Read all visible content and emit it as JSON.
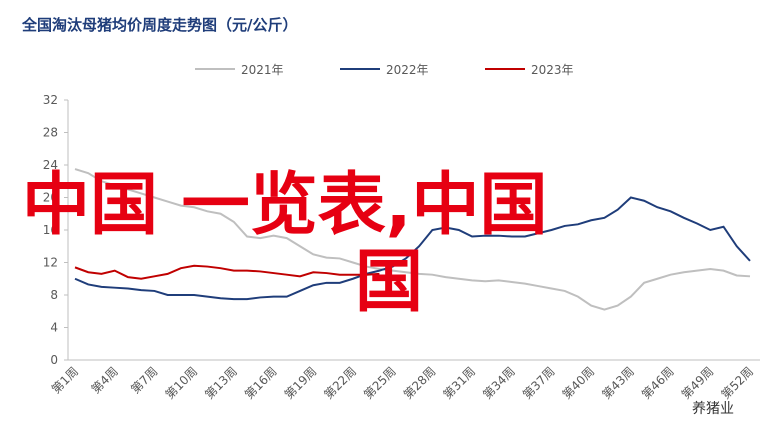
{
  "chart_data": {
    "type": "line",
    "title": "全国淘汰母猪均价周度走势图（元/公斤）",
    "categories": [
      "第1周",
      null,
      null,
      "第4周",
      null,
      null,
      "第7周",
      null,
      null,
      "第10周",
      null,
      null,
      "第13周",
      null,
      null,
      "第16周",
      null,
      null,
      "第19周",
      null,
      null,
      "第22周",
      null,
      null,
      "第25周",
      null,
      null,
      "第28周",
      null,
      null,
      "第31周",
      null,
      null,
      "第34周",
      null,
      null,
      "第37周",
      null,
      null,
      "第40周",
      null,
      null,
      "第43周",
      null,
      null,
      "第46周",
      null,
      null,
      "第49周",
      null,
      null,
      "第52周"
    ],
    "series": [
      {
        "name": "2021年",
        "color": "#bfbfbf",
        "values": [
          23.5,
          23,
          22,
          21.5,
          21,
          20.5,
          20,
          19.5,
          19,
          18.8,
          18.3,
          18,
          17,
          15.2,
          15,
          15.3,
          15,
          14,
          13,
          12.6,
          12.5,
          12,
          11.5,
          11.2,
          11,
          10.8,
          10.6,
          10.5,
          10.2,
          10,
          9.8,
          9.7,
          9.8,
          9.6,
          9.4,
          9.1,
          8.8,
          8.5,
          7.8,
          6.7,
          6.2,
          6.7,
          7.8,
          9.5,
          10,
          10.5,
          10.8,
          11,
          11.2,
          11,
          10.4,
          10.3
        ]
      },
      {
        "name": "2022年",
        "color": "#1f3d7a",
        "values": [
          10,
          9.3,
          9,
          8.9,
          8.8,
          8.6,
          8.5,
          8,
          8,
          8,
          7.8,
          7.6,
          7.5,
          7.5,
          7.7,
          7.8,
          7.8,
          8.5,
          9.2,
          9.5,
          9.5,
          10,
          10.6,
          11,
          11.5,
          12.5,
          14,
          16,
          16.3,
          16,
          15.2,
          15.3,
          15.3,
          15.2,
          15.2,
          15.6,
          16,
          16.5,
          16.7,
          17.2,
          17.5,
          18.5,
          20,
          19.6,
          18.8,
          18.3,
          17.5,
          16.8,
          16,
          16.4,
          14,
          12.2
        ]
      },
      {
        "name": "2023年",
        "color": "#c00000",
        "values": [
          11.4,
          10.8,
          10.6,
          11,
          10.2,
          10,
          10.3,
          10.6,
          11.3,
          11.6,
          11.5,
          11.3,
          11,
          11,
          10.9,
          10.7,
          10.5,
          10.3,
          10.8,
          10.7,
          10.5,
          10.5,
          10.5,
          10.6,
          null,
          null,
          null,
          null,
          null,
          null,
          null,
          null,
          null,
          null,
          null,
          null,
          null,
          null,
          null,
          null,
          null,
          null,
          null,
          null,
          null,
          null,
          null,
          null,
          null,
          null,
          null,
          null
        ]
      }
    ],
    "ylim": [
      0,
      32
    ],
    "yticks": [
      0,
      4,
      8,
      12,
      16,
      20,
      24,
      28,
      32
    ],
    "grid": false,
    "legend": "top",
    "overlay": [
      "中国 一览表,中国",
      "国"
    ],
    "source": "养猪业"
  }
}
